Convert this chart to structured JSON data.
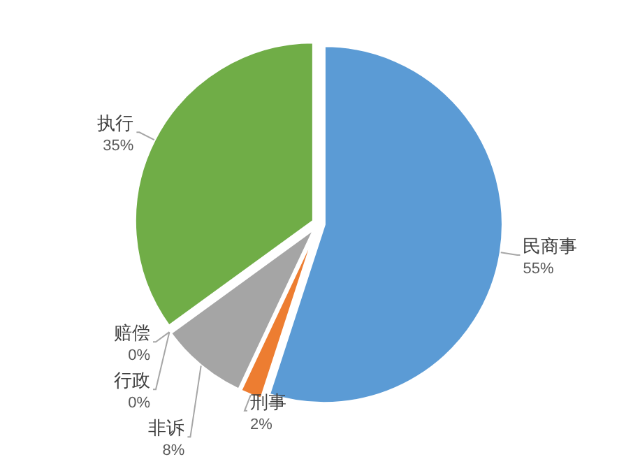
{
  "chart_data": {
    "type": "pie",
    "categories": [
      "民商事",
      "刑事",
      "非诉",
      "行政",
      "赔偿",
      "执行"
    ],
    "values": [
      55,
      2,
      8,
      0,
      0,
      35
    ],
    "value_labels": [
      "55%",
      "2%",
      "8%",
      "0%",
      "0%",
      "35%"
    ],
    "colors": [
      "#5b9bd5",
      "#ed7d31",
      "#a5a5a5",
      null,
      null,
      "#70ad47"
    ]
  }
}
